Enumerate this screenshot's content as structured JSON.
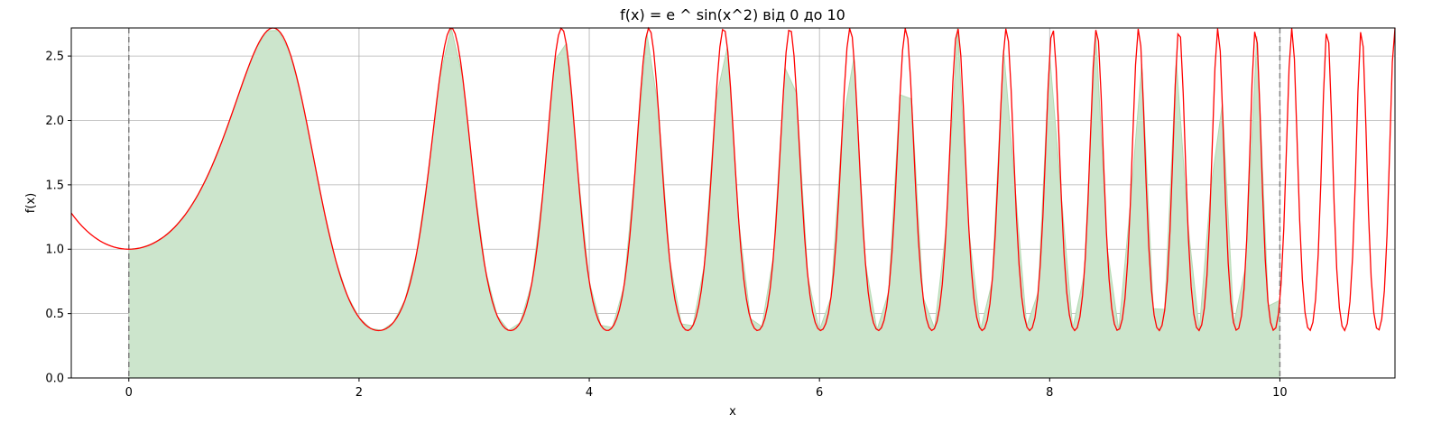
{
  "chart_data": {
    "type": "line",
    "title": "f(x) = e ^ sin(x^2) від 0 до 10",
    "xlabel": "x",
    "ylabel": "f(x)",
    "xlim": [
      -0.5,
      11.0
    ],
    "ylim": [
      0.0,
      2.718
    ],
    "x_ticks": [
      0,
      2,
      4,
      6,
      8,
      10
    ],
    "y_ticks": [
      0.0,
      0.5,
      1.0,
      1.5,
      2.0,
      2.5
    ],
    "x_tick_labels": [
      "0",
      "2",
      "4",
      "6",
      "8",
      "10"
    ],
    "y_tick_labels": [
      "0.0",
      "0.5",
      "1.0",
      "1.5",
      "2.0",
      "2.5"
    ],
    "grid": true,
    "function": "exp(sin(x^2))",
    "curve": {
      "x_range": [
        -0.5,
        11.0
      ],
      "color": "#ff0000"
    },
    "shaded_area": {
      "x_range": [
        0,
        10
      ],
      "color": "#cce5cc"
    },
    "vertical_lines": [
      0,
      10
    ],
    "colors": {
      "curve": "#ff0000",
      "fill": "#cce5cc",
      "fill_edge": "#b3dab3",
      "vline": "#808080",
      "grid": "#b0b0b0"
    }
  }
}
